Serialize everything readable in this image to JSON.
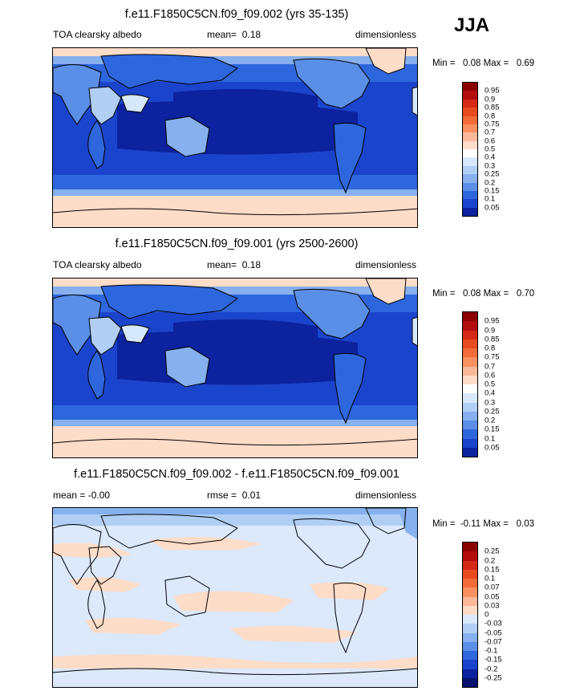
{
  "season": "JJA",
  "panels": [
    {
      "title": "f.e11.F1850C5CN.f09_f09.002 (yrs 35-135)",
      "left_label": "TOA clearsky albedo",
      "stat_label": "mean=",
      "stat_value": "0.18",
      "units": "dimensionless",
      "min_max": "Min =   0.08 Max =   0.69",
      "colorbar": {
        "labels": [
          "0.95",
          "0.9",
          "0.85",
          "0.8",
          "0.75",
          "0.7",
          "0.6",
          "0.5",
          "0.4",
          "0.3",
          "0.25",
          "0.2",
          "0.15",
          "0.1",
          "0.05"
        ],
        "colors": [
          "#8b0000",
          "#b40d0d",
          "#d42a16",
          "#e94a20",
          "#f26b38",
          "#f89060",
          "#fab898",
          "#fddcc8",
          "#ffffff",
          "#d6e8fb",
          "#b1cff5",
          "#86b0ee",
          "#5b8ee6",
          "#2e66dd",
          "#1b44cc",
          "#0c229e"
        ]
      }
    },
    {
      "title": "f.e11.F1850C5CN.f09_f09.001 (yrs 2500-2600)",
      "left_label": "TOA clearsky albedo",
      "stat_label": "mean=",
      "stat_value": "0.18",
      "units": "dimensionless",
      "min_max": "Min =   0.08 Max =   0.70",
      "colorbar": {
        "labels": [
          "0.95",
          "0.9",
          "0.85",
          "0.8",
          "0.75",
          "0.7",
          "0.6",
          "0.5",
          "0.4",
          "0.3",
          "0.25",
          "0.2",
          "0.15",
          "0.1",
          "0.05"
        ],
        "colors": [
          "#8b0000",
          "#b40d0d",
          "#d42a16",
          "#e94a20",
          "#f26b38",
          "#f89060",
          "#fab898",
          "#fddcc8",
          "#ffffff",
          "#d6e8fb",
          "#b1cff5",
          "#86b0ee",
          "#5b8ee6",
          "#2e66dd",
          "#1b44cc",
          "#0c229e"
        ]
      }
    },
    {
      "title": "f.e11.F1850C5CN.f09_f09.002 - f.e11.F1850C5CN.f09_f09.001",
      "left_label": "mean =  -0.00",
      "stat_label": "rmse =",
      "stat_value": "0.01",
      "units": "dimensionless",
      "min_max": "Min =  -0.11 Max =   0.03",
      "colorbar": {
        "labels": [
          "0.25",
          "0.2",
          "0.15",
          "0.1",
          "0.07",
          "0.05",
          "0.03",
          "0",
          "-0.03",
          "-0.05",
          "-0.07",
          "-0.1",
          "-0.15",
          "-0.2",
          "-0.25"
        ],
        "colors": [
          "#8b0000",
          "#b40d0d",
          "#d42a16",
          "#e94a20",
          "#f26b38",
          "#f89060",
          "#fab898",
          "#fddcc8",
          "#dbe9fb",
          "#b1cff5",
          "#86b0ee",
          "#5b8ee6",
          "#2e66dd",
          "#1b44cc",
          "#0c229e",
          "#08126e"
        ]
      }
    }
  ],
  "chart_data": [
    {
      "type": "heatmap",
      "title": "f.e11.F1850C5CN.f09_f09.002 (yrs 35-135)",
      "variable": "TOA clearsky albedo",
      "units": "dimensionless",
      "season": "JJA",
      "mean": 0.18,
      "min": 0.08,
      "max": 0.69,
      "contour_levels": [
        0.05,
        0.1,
        0.15,
        0.2,
        0.25,
        0.3,
        0.4,
        0.5,
        0.6,
        0.7,
        0.75,
        0.8,
        0.85,
        0.9,
        0.95
      ],
      "projection": "global cylindrical equidistant, centered on Pacific"
    },
    {
      "type": "heatmap",
      "title": "f.e11.F1850C5CN.f09_f09.001 (yrs 2500-2600)",
      "variable": "TOA clearsky albedo",
      "units": "dimensionless",
      "season": "JJA",
      "mean": 0.18,
      "min": 0.08,
      "max": 0.7,
      "contour_levels": [
        0.05,
        0.1,
        0.15,
        0.2,
        0.25,
        0.3,
        0.4,
        0.5,
        0.6,
        0.7,
        0.75,
        0.8,
        0.85,
        0.9,
        0.95
      ],
      "projection": "global cylindrical equidistant, centered on Pacific"
    },
    {
      "type": "heatmap",
      "title": "f.e11.F1850C5CN.f09_f09.002 - f.e11.F1850C5CN.f09_f09.001",
      "units": "dimensionless",
      "season": "JJA",
      "mean": -0.0,
      "rmse": 0.01,
      "min": -0.11,
      "max": 0.03,
      "contour_levels": [
        -0.25,
        -0.2,
        -0.15,
        -0.1,
        -0.07,
        -0.05,
        -0.03,
        0,
        0.03,
        0.05,
        0.07,
        0.1,
        0.15,
        0.2,
        0.25
      ],
      "projection": "global cylindrical equidistant, centered on Pacific"
    }
  ]
}
